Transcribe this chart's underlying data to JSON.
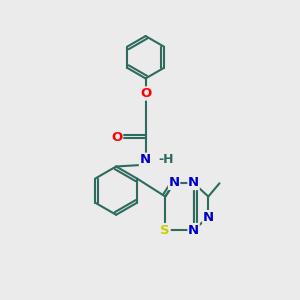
{
  "bg_color": "#ebebeb",
  "bond_color": "#2d6b5e",
  "atom_colors": {
    "O": "#ff0000",
    "N": "#0000cc",
    "S": "#cccc00",
    "C": "#2d6b5e",
    "H": "#2d6b5e"
  },
  "lw": 1.5,
  "fs": 9.5
}
